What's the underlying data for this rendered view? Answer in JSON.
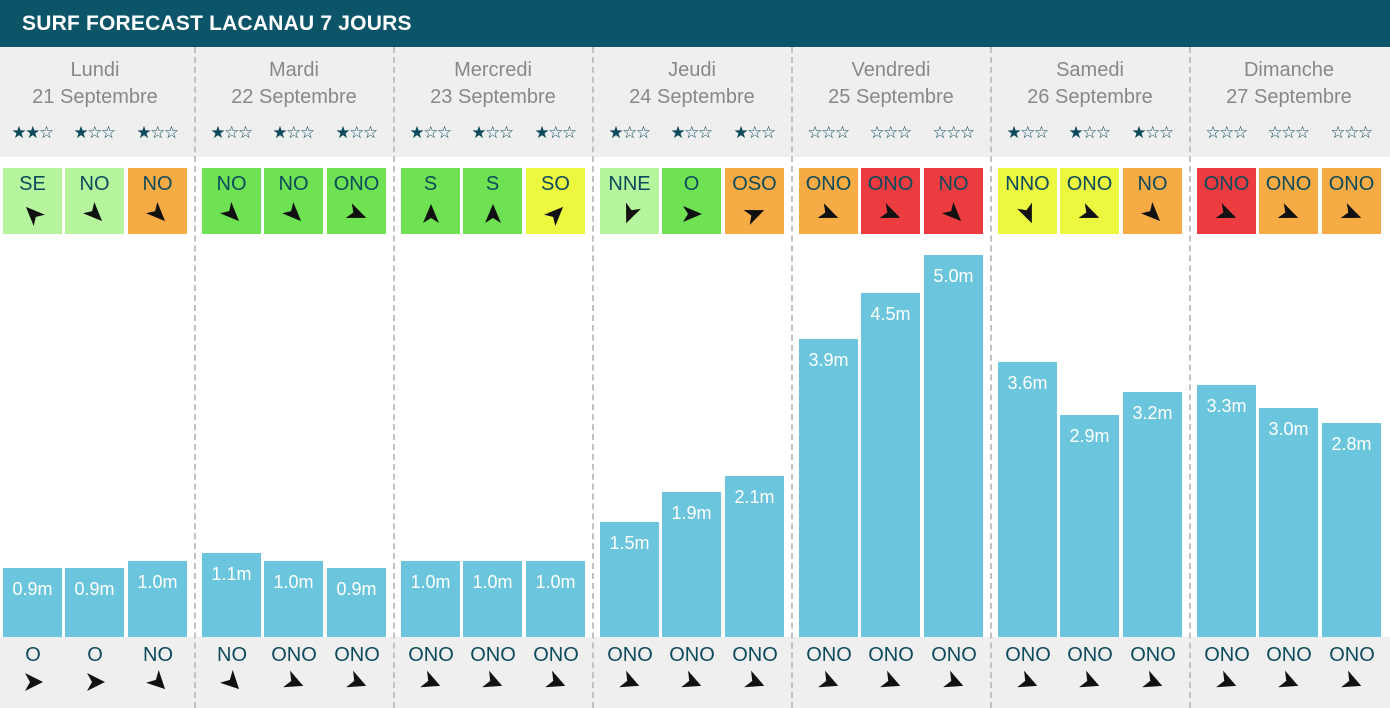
{
  "title": "SURF FORECAST LACANAU 7 JOURS",
  "colors": {
    "header_bg": "#0c5468",
    "bar": "#6bc6dd",
    "text_dark": "#0c4a5c",
    "band_bg": "#efefef",
    "wind_light_green": "#b6f59e",
    "wind_green": "#6ee252",
    "wind_yellow": "#ecf740",
    "wind_orange": "#f7ab44",
    "wind_red": "#ed3c40"
  },
  "icons": {
    "wind": "wind-direction-arrow-icon",
    "swell": "swell-direction-arrow-icon",
    "star_filled": "★",
    "star_empty": "☆"
  },
  "days": [
    {
      "name": "Lundi",
      "date": "21 Septembre"
    },
    {
      "name": "Mardi",
      "date": "22 Septembre"
    },
    {
      "name": "Mercredi",
      "date": "23 Septembre"
    },
    {
      "name": "Jeudi",
      "date": "24 Septembre"
    },
    {
      "name": "Vendredi",
      "date": "25 Septembre"
    },
    {
      "name": "Samedi",
      "date": "26 Septembre"
    },
    {
      "name": "Dimanche",
      "date": "27 Septembre"
    }
  ],
  "chart_data": {
    "type": "bar",
    "ylabel": "",
    "unit": "m",
    "categories": [
      "Lundi 1",
      "Lundi 2",
      "Lundi 3",
      "Mardi 1",
      "Mardi 2",
      "Mardi 3",
      "Mercredi 1",
      "Mercredi 2",
      "Mercredi 3",
      "Jeudi 1",
      "Jeudi 2",
      "Jeudi 3",
      "Vendredi 1",
      "Vendredi 2",
      "Vendredi 3",
      "Samedi 1",
      "Samedi 2",
      "Samedi 3",
      "Dimanche 1",
      "Dimanche 2",
      "Dimanche 3"
    ],
    "values": [
      0.9,
      0.9,
      1.0,
      1.1,
      1.0,
      0.9,
      1.0,
      1.0,
      1.0,
      1.5,
      1.9,
      2.1,
      3.9,
      4.5,
      5.0,
      3.6,
      2.9,
      3.2,
      3.3,
      3.0,
      2.8
    ],
    "labels": [
      "0.9m",
      "0.9m",
      "1.0m",
      "1.1m",
      "1.0m",
      "0.9m",
      "1.0m",
      "1.0m",
      "1.0m",
      "1.5m",
      "1.9m",
      "2.1m",
      "3.9m",
      "4.5m",
      "5.0m",
      "3.6m",
      "2.9m",
      "3.2m",
      "3.3m",
      "3.0m",
      "2.8m"
    ],
    "ylim": [
      0,
      6.8
    ],
    "stars": [
      2,
      1,
      1,
      1,
      1,
      1,
      1,
      1,
      1,
      1,
      1,
      1,
      0,
      0,
      0,
      1,
      1,
      1,
      0,
      0,
      0
    ],
    "stars_max": 3,
    "wind_dir": [
      "SE",
      "NO",
      "NO",
      "NO",
      "NO",
      "ONO",
      "S",
      "S",
      "SO",
      "NNE",
      "O",
      "OSO",
      "ONO",
      "ONO",
      "NO",
      "NNO",
      "ONO",
      "NO",
      "ONO",
      "ONO",
      "ONO"
    ],
    "wind_color": [
      "wind_light_green",
      "wind_light_green",
      "wind_orange",
      "wind_green",
      "wind_green",
      "wind_green",
      "wind_green",
      "wind_green",
      "wind_yellow",
      "wind_light_green",
      "wind_green",
      "wind_orange",
      "wind_orange",
      "wind_red",
      "wind_red",
      "wind_yellow",
      "wind_yellow",
      "wind_orange",
      "wind_red",
      "wind_orange",
      "wind_orange"
    ],
    "swell_dir": [
      "O",
      "O",
      "NO",
      "NO",
      "ONO",
      "ONO",
      "ONO",
      "ONO",
      "ONO",
      "ONO",
      "ONO",
      "ONO",
      "ONO",
      "ONO",
      "ONO",
      "ONO",
      "ONO",
      "ONO",
      "ONO",
      "ONO",
      "ONO"
    ]
  }
}
